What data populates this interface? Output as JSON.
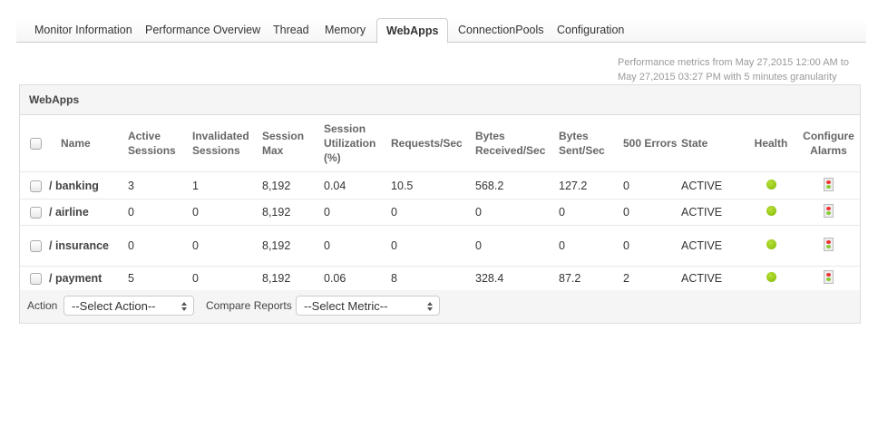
{
  "tabs": [
    {
      "label": "Monitor Information",
      "active": false
    },
    {
      "label": "Performance Overview",
      "active": false
    },
    {
      "label": "Thread",
      "active": false
    },
    {
      "label": "Memory",
      "active": false
    },
    {
      "label": "WebApps",
      "active": true
    },
    {
      "label": "ConnectionPools",
      "active": false
    },
    {
      "label": "Configuration",
      "active": false
    }
  ],
  "meta": {
    "line1": "Performance metrics from May 27,2015 12:00 AM to",
    "line2": "May 27,2015 03:27 PM with 5 minutes granularity"
  },
  "panel": {
    "title": "WebApps",
    "columns": [
      "Name",
      "Active Sessions",
      "Invalidated Sessions",
      "Session Max",
      "Session Utilization (%)",
      "Requests/Sec",
      "Bytes Received/Sec",
      "Bytes Sent/Sec",
      "500 Errors",
      "State",
      "Health",
      "Configure Alarms"
    ],
    "rows": [
      {
        "name": "/ banking",
        "active": "3",
        "invalidated": "1",
        "max": "8,192",
        "util": "0.04",
        "req": "10.5",
        "recv": "568.2",
        "sent": "127.2",
        "errors": "0",
        "state": "ACTIVE",
        "health": "green"
      },
      {
        "name": "/ airline",
        "active": "0",
        "invalidated": "0",
        "max": "8,192",
        "util": "0",
        "req": "0",
        "recv": "0",
        "sent": "0",
        "errors": "0",
        "state": "ACTIVE",
        "health": "green"
      },
      {
        "name": "/ insurance",
        "active": "0",
        "invalidated": "0",
        "max": "8,192",
        "util": "0",
        "req": "0",
        "recv": "0",
        "sent": "0",
        "errors": "0",
        "state": "ACTIVE",
        "health": "green"
      },
      {
        "name": "/ payment",
        "active": "5",
        "invalidated": "0",
        "max": "8,192",
        "util": "0.06",
        "req": "8",
        "recv": "328.4",
        "sent": "87.2",
        "errors": "2",
        "state": "ACTIVE",
        "health": "green"
      }
    ],
    "footer": {
      "action_label": "Action",
      "action_value": "--Select Action--",
      "compare_label": "Compare Reports",
      "compare_value": "--Select Metric--"
    }
  },
  "colors": {
    "health_green": "#8cc600"
  }
}
